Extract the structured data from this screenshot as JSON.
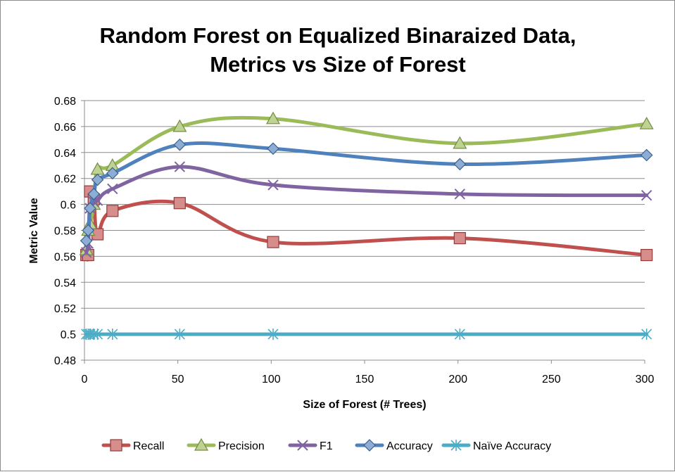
{
  "chart_data": {
    "type": "line",
    "title_lines": [
      "Random Forest on Equalized Binaraized Data,",
      "Metrics vs Size of Forest"
    ],
    "xlabel": "Size of Forest (# Trees)",
    "ylabel": "Metric Value",
    "xlim": [
      0,
      300
    ],
    "ylim": [
      0.48,
      0.68
    ],
    "xticks": [
      0,
      50,
      100,
      150,
      200,
      250,
      300
    ],
    "yticks": [
      0.48,
      0.5,
      0.52,
      0.54,
      0.56,
      0.58,
      0.6,
      0.62,
      0.64,
      0.66,
      0.68
    ],
    "xtick_labels": [
      "0",
      "50",
      "100",
      "150",
      "200",
      "250",
      "300"
    ],
    "ytick_labels": [
      "0.48",
      "0.5",
      "0.52",
      "0.54",
      "0.56",
      "0.58",
      "0.6",
      "0.62",
      "0.64",
      "0.66",
      "0.68"
    ],
    "grid": "horizontal",
    "legend_position": "bottom",
    "x": [
      1,
      2,
      3,
      5,
      7,
      15,
      51,
      101,
      201,
      301
    ],
    "series": [
      {
        "name": "Recall",
        "color": "#c0504d",
        "marker": "square",
        "values": [
          0.561,
          0.561,
          0.61,
          0.604,
          0.577,
          0.595,
          0.601,
          0.571,
          0.574,
          0.561
        ]
      },
      {
        "name": "Precision",
        "color": "#9bbb59",
        "marker": "triangle",
        "values": [
          0.565,
          0.58,
          0.585,
          0.6,
          0.627,
          0.63,
          0.66,
          0.666,
          0.647,
          0.662
        ]
      },
      {
        "name": "F1",
        "color": "#8064a2",
        "marker": "x",
        "values": [
          0.563,
          0.57,
          0.597,
          0.602,
          0.603,
          0.612,
          0.629,
          0.615,
          0.608,
          0.607
        ]
      },
      {
        "name": "Accuracy",
        "color": "#4f81bd",
        "marker": "diamond",
        "values": [
          0.572,
          0.58,
          0.597,
          0.608,
          0.619,
          0.624,
          0.646,
          0.643,
          0.631,
          0.638
        ]
      },
      {
        "name": "Naïve Accuracy",
        "color": "#4bacc6",
        "marker": "asterisk",
        "values": [
          0.5,
          0.5,
          0.5,
          0.5,
          0.5,
          0.5,
          0.5,
          0.5,
          0.5,
          0.5
        ]
      }
    ]
  }
}
